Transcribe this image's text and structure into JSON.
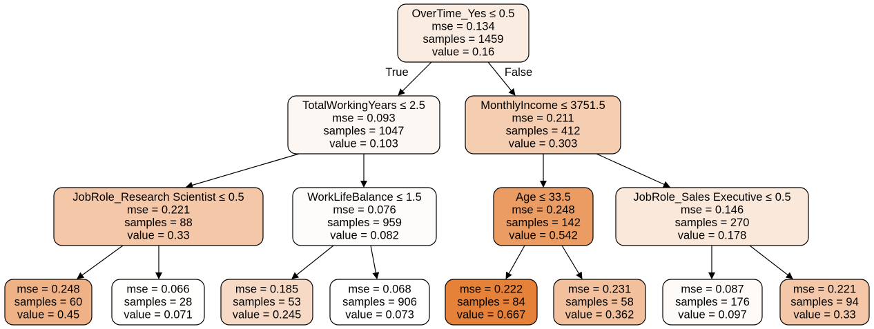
{
  "nodes": [
    {
      "id": "n0",
      "lines": [
        "OverTime_Yes ≤ 0.5",
        "mse = 0.134",
        "samples = 1459",
        "value = 0.16"
      ],
      "fill": "#fbece1"
    },
    {
      "id": "n1",
      "lines": [
        "TotalWorkingYears ≤ 2.5",
        "mse = 0.093",
        "samples = 1047",
        "value = 0.103"
      ],
      "fill": "#fdf7f3"
    },
    {
      "id": "n2",
      "lines": [
        "MonthlyIncome ≤ 3751.5",
        "mse = 0.211",
        "samples = 412",
        "value = 0.303"
      ],
      "fill": "#f5cdb0"
    },
    {
      "id": "n3",
      "lines": [
        "JobRole_Research Scientist ≤ 0.5",
        "mse = 0.221",
        "samples = 88",
        "value = 0.33"
      ],
      "fill": "#f4c7a8"
    },
    {
      "id": "n4",
      "lines": [
        "WorkLifeBalance ≤ 1.5",
        "mse = 0.076",
        "samples = 959",
        "value = 0.082"
      ],
      "fill": "#fefcfa"
    },
    {
      "id": "n5",
      "lines": [
        "Age ≤ 33.5",
        "mse = 0.248",
        "samples = 142",
        "value = 0.542"
      ],
      "fill": "#ea9c63"
    },
    {
      "id": "n6",
      "lines": [
        "JobRole_Sales Executive ≤ 0.5",
        "mse = 0.146",
        "samples = 270",
        "value = 0.178"
      ],
      "fill": "#fae8da"
    },
    {
      "id": "n7",
      "lines": [
        "mse = 0.248",
        "samples = 60",
        "value = 0.45"
      ],
      "fill": "#efb286"
    },
    {
      "id": "n8",
      "lines": [
        "mse = 0.066",
        "samples = 28",
        "value = 0.071"
      ],
      "fill": "#fffffe"
    },
    {
      "id": "n9",
      "lines": [
        "mse = 0.185",
        "samples = 53",
        "value = 0.245"
      ],
      "fill": "#f7dac6"
    },
    {
      "id": "n10",
      "lines": [
        "mse = 0.068",
        "samples = 906",
        "value = 0.073"
      ],
      "fill": "#ffffff"
    },
    {
      "id": "n11",
      "lines": [
        "mse = 0.222",
        "samples = 84",
        "value = 0.667"
      ],
      "fill": "#e58139"
    },
    {
      "id": "n12",
      "lines": [
        "mse = 0.231",
        "samples = 58",
        "value = 0.362"
      ],
      "fill": "#f2c09c"
    },
    {
      "id": "n13",
      "lines": [
        "mse = 0.087",
        "samples = 176",
        "value = 0.097"
      ],
      "fill": "#fefaf7"
    },
    {
      "id": "n14",
      "lines": [
        "mse = 0.221",
        "samples = 94",
        "value = 0.33"
      ],
      "fill": "#f4c7a8"
    }
  ],
  "edges": [
    {
      "from": "n0",
      "to": "n1",
      "label": "True"
    },
    {
      "from": "n0",
      "to": "n2",
      "label": "False"
    },
    {
      "from": "n1",
      "to": "n3",
      "label": ""
    },
    {
      "from": "n1",
      "to": "n4",
      "label": ""
    },
    {
      "from": "n2",
      "to": "n5",
      "label": ""
    },
    {
      "from": "n2",
      "to": "n6",
      "label": ""
    },
    {
      "from": "n3",
      "to": "n7",
      "label": ""
    },
    {
      "from": "n3",
      "to": "n8",
      "label": ""
    },
    {
      "from": "n4",
      "to": "n9",
      "label": ""
    },
    {
      "from": "n4",
      "to": "n10",
      "label": ""
    },
    {
      "from": "n5",
      "to": "n11",
      "label": ""
    },
    {
      "from": "n5",
      "to": "n12",
      "label": ""
    },
    {
      "from": "n6",
      "to": "n13",
      "label": ""
    },
    {
      "from": "n6",
      "to": "n14",
      "label": ""
    }
  ]
}
